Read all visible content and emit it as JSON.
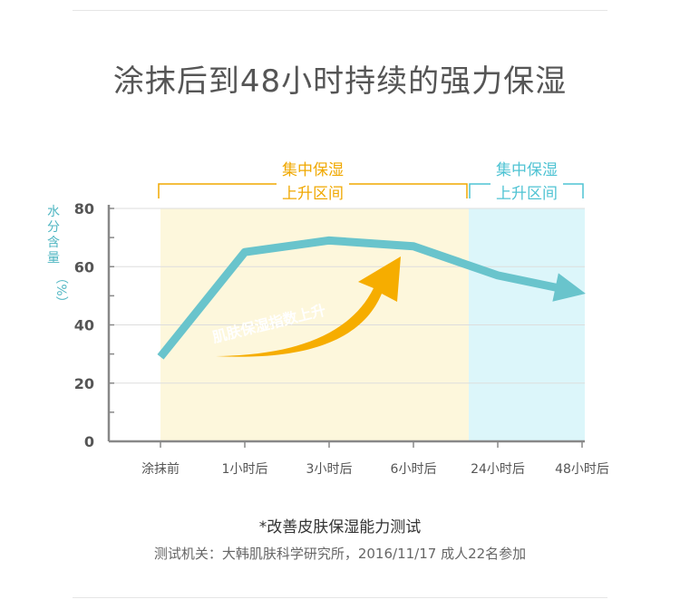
{
  "title": "涂抹后到48小时持续的强力保湿",
  "chart_data": {
    "type": "line",
    "ylabel_chars": [
      "水",
      "分",
      "含",
      "量"
    ],
    "yunit": "（%）",
    "ylim": [
      0,
      80
    ],
    "yticks": [
      "0",
      "20",
      "40",
      "60",
      "80"
    ],
    "categories": [
      "涂抹前",
      "1小时后",
      "3小时后",
      "6小时后",
      "24小时后",
      "48小时后"
    ],
    "values": [
      29,
      65,
      69,
      67,
      57,
      51
    ],
    "zones": [
      {
        "label_line1": "集中保湿",
        "label_line2": "上升区间",
        "from": 0,
        "to": 4,
        "fill": "#fdf7dc",
        "label_color": "#f0a800"
      },
      {
        "label_line1": "集中保湿",
        "label_line2": "上升区间",
        "from": 4,
        "to": 5,
        "fill": "#dcf6fa",
        "label_color": "#4fc3d3"
      }
    ],
    "annotation": "肌肤保湿指数上升",
    "colors": {
      "line": "#69c4cc",
      "arrow": "#f6ad00",
      "axis": "#888888",
      "grid": "#dddddd",
      "ylabel": "#4fb6c2"
    }
  },
  "footnote": "*改善皮肤保湿能力测试",
  "source": "测试机关：大韩肌肤科学研究所，2016/11/17 成人22名参加"
}
